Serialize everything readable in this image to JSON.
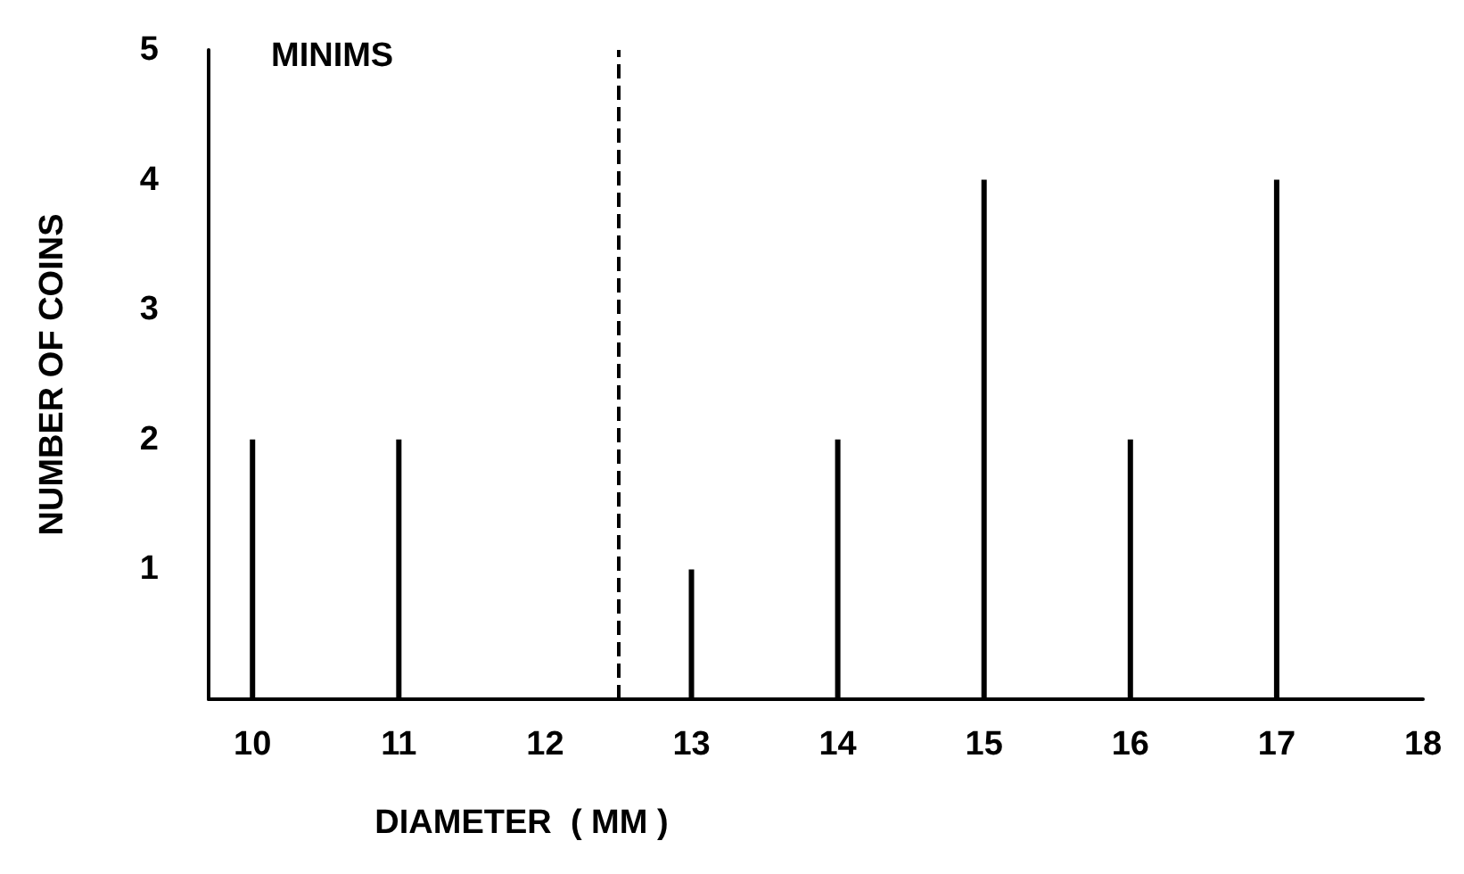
{
  "chart_data": {
    "type": "bar",
    "xlabel": "DIAMETER  ( MM )",
    "ylabel": "NUMBER OF COINS",
    "x": [
      10,
      11,
      13,
      14,
      15,
      16,
      17
    ],
    "values": [
      2,
      2,
      1,
      2,
      4,
      2,
      4
    ],
    "color": "#000000",
    "xlim": [
      9.7,
      18
    ],
    "xticks": [
      10,
      11,
      12,
      13,
      14,
      15,
      16,
      17,
      18
    ],
    "ylim": [
      0,
      5
    ],
    "yticks": [
      1,
      2,
      3,
      4,
      5
    ],
    "grid": false,
    "ref_lines": [
      {
        "axis": "x",
        "value": 12.5,
        "line_style": "dashed",
        "color": "#000000"
      }
    ],
    "annotations": [
      "MINIMS"
    ]
  }
}
